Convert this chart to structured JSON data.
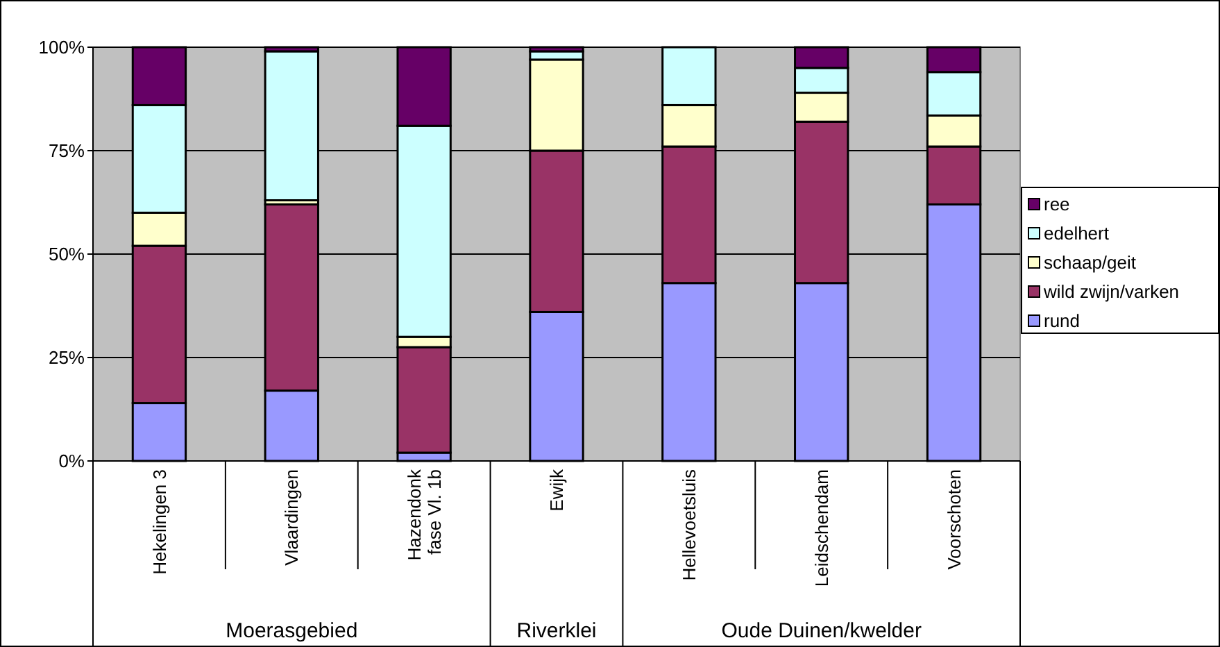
{
  "chart_data": {
    "type": "bar",
    "stacked": true,
    "categories": [
      "Hekelingen 3",
      "Vlaardingen",
      "Hazendonk fase Vl. 1b",
      "Ewijk",
      "Hellevoetsluis",
      "Leidschendam",
      "Voorschoten"
    ],
    "series": [
      {
        "name": "rund",
        "color": "#9999ff",
        "values": [
          14,
          17,
          2,
          36,
          43,
          43,
          62
        ]
      },
      {
        "name": "wild zwijn/varken",
        "color": "#993366",
        "values": [
          38,
          45,
          25.5,
          39,
          33,
          39,
          14
        ]
      },
      {
        "name": "schaap/geit",
        "color": "#ffffcc",
        "values": [
          8,
          1,
          2.5,
          22,
          10,
          7,
          7.5
        ]
      },
      {
        "name": "edelhert",
        "color": "#ccffff",
        "values": [
          26,
          36,
          51,
          2,
          14,
          6,
          10.5
        ]
      },
      {
        "name": "ree",
        "color": "#660066",
        "values": [
          14,
          1,
          19,
          1,
          0,
          5,
          6
        ]
      }
    ],
    "ylim": [
      0,
      100
    ],
    "yticks": [
      {
        "value": 0,
        "label": "0%"
      },
      {
        "value": 25,
        "label": "25%"
      },
      {
        "value": 50,
        "label": "50%"
      },
      {
        "value": 75,
        "label": "75%"
      },
      {
        "value": 100,
        "label": "100%"
      }
    ],
    "grid": "y",
    "legend": "right",
    "annotations": [
      "Moerasgebied",
      "Riverklei",
      "Oude Duinen/kwelder"
    ]
  }
}
